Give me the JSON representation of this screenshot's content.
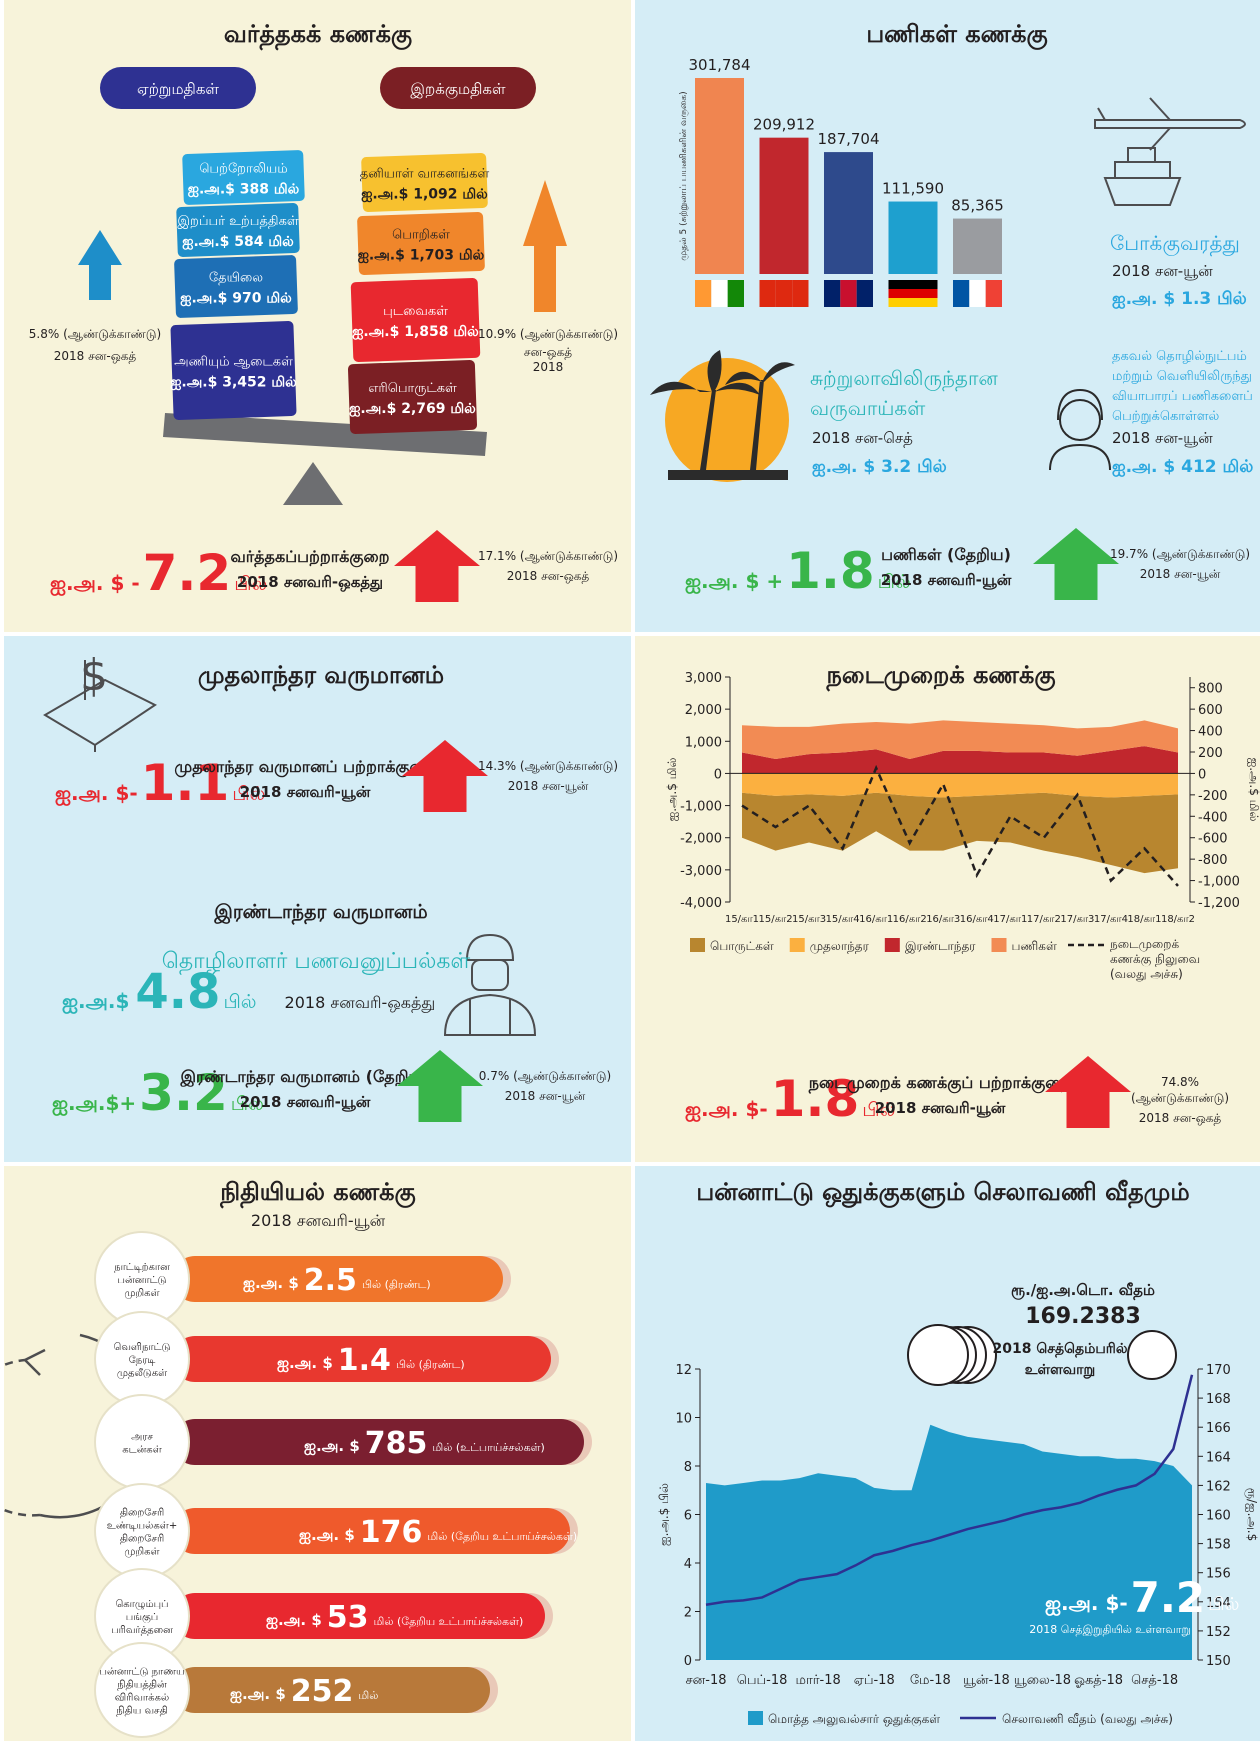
{
  "trade": {
    "title": "வர்த்தகக் கணக்கு",
    "exports": {
      "label": "ஏற்றுமதிகள்",
      "items": [
        {
          "name": "பெற்றோலியம்",
          "amount": "ஐ.அ.$ 388 மில்"
        },
        {
          "name": "இறப்பர் உற்பத்திகள்",
          "amount": "ஐ.அ.$ 584 மில்"
        },
        {
          "name": "தேயிலை",
          "amount": "ஐ.அ.$ 970 மில்"
        },
        {
          "name": "அணியும் ஆடைகள்",
          "amount": "ஐ.அ.$ 3,452 மில்"
        }
      ],
      "growth": "5.8% (ஆண்டுக்காண்டு)",
      "period": [
        "2018 சன-ஒகத்"
      ]
    },
    "imports": {
      "label": "இறக்குமதிகள்",
      "items": [
        {
          "name": "தனியாள் வாகனங்கள்",
          "amount": "ஐ.அ.$ 1,092 மில்"
        },
        {
          "name": "பொறிகள்",
          "amount": "ஐ.அ.$ 1,703 மில்"
        },
        {
          "name": "புடவைகள்",
          "amount": "ஐ.அ.$ 1,858 மில்"
        },
        {
          "name": "எரிபொருட்கள்",
          "amount": "ஐ.அ.$ 2,769 மில்"
        }
      ],
      "growth": "10.9% (ஆண்டுக்காண்டு)",
      "period": [
        "சன-ஒகத்",
        "2018"
      ]
    },
    "balance": {
      "prefix": "ஐ.அ. $ -",
      "value": "7.2",
      "unit": "பில்",
      "label": "வர்த்தகப்பற்றாக்குறை",
      "period": "2018 சனவரி-ஒகத்து",
      "growth": [
        "17.1% (ஆண்டுக்காண்டு)"
      ],
      "growth_period": [
        "2018 சன-ஒகத்"
      ]
    }
  },
  "services": {
    "title": "பணிகள் கணக்கு",
    "transport": {
      "name": "போக்குவரத்து",
      "period": "2018 சன-யூன்",
      "amount": "ஐ.அ. $ 1.3 பில்"
    },
    "tourism": {
      "name": [
        "சுற்றுலாவிலிருந்தான",
        "வருவாய்கள்"
      ],
      "period": "2018 சன-செத்",
      "amount": "ஐ.அ. $ 3.2 பில்"
    },
    "it_bpo": {
      "name": [
        "தகவல் தொழில்நுட்பம்",
        "மற்றும் வெளியிலிருந்து",
        "வியாபாரப் பணிகளைப்",
        "பெற்றுக்கொள்ளல்"
      ],
      "period": "2018 சன-யூன்",
      "amount": "ஐ.அ. $ 412 மில்"
    },
    "balance": {
      "prefix": "ஐ.அ. $ +",
      "value": "1.8",
      "unit": "பில்",
      "label": "பணிகள் (தேறிய)",
      "period": "2018 சனவரி-யூன்",
      "growth": [
        "19.7% (ஆண்டுக்காண்டு)"
      ],
      "growth_period": [
        "2018 சன-யூன்"
      ]
    }
  },
  "primary_income": {
    "title": "முதலாந்தர வருமானம்",
    "balance": {
      "prefix": "ஐ.அ. $-",
      "value": "1.1",
      "unit": "பில்",
      "label": "முதலாந்தர வருமானப் பற்றாக்குறை",
      "period": "2018 சனவரி-யூன்",
      "growth": [
        "14.3% (ஆண்டுக்காண்டு)"
      ],
      "growth_period": [
        "2018 சன-யூன்"
      ]
    }
  },
  "secondary_income": {
    "title": "இரண்டாந்தர வருமானம்",
    "remittances": {
      "name": "தொழிலாளர் பணவனுப்பல்கள்",
      "prefix": "ஐ.அ.$",
      "value": "4.8",
      "unit": "பில்",
      "period": "2018 சனவரி-ஒகத்து"
    },
    "balance": {
      "prefix": "ஐ.அ.$+",
      "value": "3.2",
      "unit": "பில்",
      "label": "இரண்டாந்தர வருமானம் (தேறிய)",
      "period": "2018 சனவரி-யூன்",
      "growth": [
        "0.7% (ஆண்டுக்காண்டு)"
      ],
      "growth_period": [
        "2018 சன-யூன்"
      ]
    }
  },
  "current_account": {
    "balance": {
      "prefix": "ஐ.அ. $-",
      "value": "1.8",
      "unit": "பில்",
      "label": "நடைமுறைக் கணக்குப் பற்றாக்குறை",
      "period": "2018 சனவரி-யூன்",
      "growth": [
        "74.8%",
        "(ஆண்டுக்காண்டு)"
      ],
      "growth_period": [
        "2018 சன-ஒகத்"
      ]
    }
  },
  "financial_account": {
    "title": "நிதியியல் கணக்கு",
    "period": "2018 சனவரி-யூன்",
    "items": [
      {
        "label": [
          "நாட்டிற்கான",
          "பன்னாட்டு",
          "முறிகள்"
        ],
        "prefix": "ஐ.அ. $",
        "value": "2.5",
        "suffix": "பில் (திரண்ட)"
      },
      {
        "label": [
          "வெளிநாட்டு",
          "நேரடி",
          "முதலீடுகள்"
        ],
        "prefix": "ஐ.அ. $",
        "value": "1.4",
        "suffix": "பில் (திரண்ட)"
      },
      {
        "label": [
          "அரச",
          "கடன்கள்"
        ],
        "prefix": "ஐ.அ. $",
        "value": "785",
        "suffix": "மில் (உட்பாய்ச்சல்கள்)"
      },
      {
        "label": [
          "திறைசேரி",
          "உண்டியல்கள்+",
          "திறைசேரி",
          "முறிகள்"
        ],
        "prefix": "ஐ.அ. $",
        "value": "176",
        "suffix": "மில் (தேறிய உட்பாய்ச்சல்கள்)"
      },
      {
        "label": [
          "கொழும்புப்",
          "பங்குப்",
          "பரிவர்த்தனை"
        ],
        "prefix": "ஐ.அ. $",
        "value": "53",
        "suffix": "மில் (தேறிய உட்பாய்ச்சல்கள்)"
      },
      {
        "label": [
          "பன்னாட்டு நாணய",
          "நிதியத்தின்",
          "விரிவாக்கல்",
          "நிதிய வசதி"
        ],
        "prefix": "ஐ.அ. $",
        "value": "252",
        "suffix": "மில்"
      }
    ]
  },
  "chart_data": [
    {
      "type": "bar",
      "ylabel": "முதல் 5 (சுற்றுலாப் பயணிகளின் வருகை)",
      "categories": [
        null,
        null,
        null,
        null,
        null
      ],
      "values": [
        301784,
        209912,
        187704,
        111590,
        85365
      ],
      "value_labels": [
        "301,784",
        "209,912",
        "187,704",
        "111,590",
        "85,365"
      ],
      "colors": [
        "#f08550",
        "#c1272d",
        "#2e4a8c",
        "#1ea0cf",
        "#9a9ca0"
      ]
    },
    {
      "type": "area",
      "title": "நடைமுறைக் கணக்கு",
      "ylabel": "ஐ.அ.$ மில்",
      "y2label": "ஐ.அ.$ மில்",
      "categories": [
        "15/கா1",
        "15/கா2",
        "15/கா3",
        "15/கா4",
        "16/கா1",
        "16/கா2",
        "16/கா3",
        "16/கா4",
        "17/கா1",
        "17/கா2",
        "17/கா3",
        "17/கா4",
        "18/கா1",
        "18/கா2"
      ],
      "ylim": [
        -4000,
        3000
      ],
      "yticks": [
        {
          "value": -4000,
          "label": "-4,000"
        },
        {
          "value": -3000,
          "label": "-3,000"
        },
        {
          "value": -2000,
          "label": "-2,000"
        },
        {
          "value": -1000,
          "label": "-1,000"
        },
        0,
        {
          "value": 1000,
          "label": "1,000"
        },
        {
          "value": 2000,
          "label": "2,000"
        },
        {
          "value": 3000,
          "label": "3,000"
        }
      ],
      "y2lim": [
        -1200,
        900
      ],
      "y2ticks": [
        {
          "value": -1200,
          "label": "-1,200"
        },
        {
          "value": -1000,
          "label": "-1,000"
        },
        -800,
        -600,
        -400,
        -200,
        0,
        200,
        400,
        600,
        800
      ],
      "series": [
        {
          "name": "பொருட்கள்",
          "color": "#b8862f",
          "values": [
            -1400,
            -1700,
            -1500,
            -1700,
            -1200,
            -1700,
            -1650,
            -1400,
            -1500,
            -1800,
            -1900,
            -2100,
            -2400,
            -2300
          ]
        },
        {
          "name": "முதலாந்தர",
          "color": "#fbb040",
          "values": [
            -600,
            -700,
            -650,
            -700,
            -600,
            -700,
            -750,
            -700,
            -650,
            -600,
            -700,
            -750,
            -700,
            -650
          ]
        },
        {
          "name": "இரண்டாந்தர",
          "color": "#c1272d",
          "values": [
            650,
            450,
            600,
            650,
            750,
            450,
            700,
            700,
            650,
            650,
            550,
            700,
            850,
            650
          ]
        },
        {
          "name": "பணிகள்",
          "color": "#f28b54",
          "values": [
            850,
            1000,
            850,
            900,
            850,
            1100,
            950,
            900,
            900,
            850,
            850,
            750,
            800,
            750
          ]
        },
        {
          "name": "நடைமுறைக் கணக்கு நிலுவை (வலது அச்சு)",
          "color": "#231f20",
          "type": "line",
          "axis": "y2",
          "dashed": true,
          "values": [
            -300,
            -500,
            -300,
            -700,
            50,
            -650,
            -100,
            -950,
            -400,
            -600,
            -200,
            -1000,
            -700,
            -1050
          ]
        }
      ]
    },
    {
      "type": "area",
      "title": "பன்னாட்டு ஒதுக்குகளும் செலாவணி வீதமும்",
      "ylabel": "ஐ.அ.$ பில்",
      "y2label": "ரூ/ஐ.அ.$",
      "categories": [
        "சன-18",
        null,
        null,
        "பெப்-18",
        null,
        null,
        "மார்-18",
        null,
        null,
        "ஏப்-18",
        null,
        null,
        "மே-18",
        null,
        null,
        "யூன்-18",
        null,
        null,
        "யூலை-18",
        null,
        null,
        "ஓகத்-18",
        null,
        null,
        "செத்-18",
        null,
        null
      ],
      "ylim": [
        0,
        12
      ],
      "yticks": [
        0,
        2,
        4,
        6,
        8,
        10,
        12
      ],
      "y2lim": [
        150,
        170
      ],
      "y2ticks": [
        150,
        152,
        154,
        156,
        158,
        160,
        162,
        164,
        166,
        168,
        170
      ],
      "series": [
        {
          "name": "மொத்த அலுவல்சார் ஒதுக்குகள்",
          "color": "#1f9bc9",
          "values": [
            7.3,
            7.2,
            7.3,
            7.4,
            7.4,
            7.5,
            7.7,
            7.6,
            7.5,
            7.1,
            7.0,
            7.0,
            9.7,
            9.4,
            9.2,
            9.1,
            9.0,
            8.9,
            8.6,
            8.5,
            8.4,
            8.4,
            8.3,
            8.3,
            8.2,
            8.0,
            7.2
          ]
        },
        {
          "name": "செலாவணி வீதம் (வலது அச்சு)",
          "color": "#2e3192",
          "type": "line",
          "axis": "y2",
          "values": [
            153.8,
            154.0,
            154.1,
            154.3,
            154.9,
            155.5,
            155.7,
            155.9,
            156.5,
            157.2,
            157.5,
            157.9,
            158.2,
            158.6,
            159.0,
            159.3,
            159.6,
            160.0,
            160.3,
            160.5,
            160.8,
            161.3,
            161.7,
            162.0,
            162.8,
            164.5,
            169.6
          ]
        }
      ],
      "rate_title": "ரூ./ஐ.அ.டொ. வீதம்",
      "rate_value": "169.2383",
      "rate_note": [
        "2018 செத்தெம்பரில்",
        "உள்ளவாறு"
      ],
      "note_prefix": "ஐ.அ. $-",
      "note_value": "7.2",
      "note_unit": "பில்",
      "note_period": "2018 செத்இறுதியில் உள்ளவாறு"
    }
  ]
}
